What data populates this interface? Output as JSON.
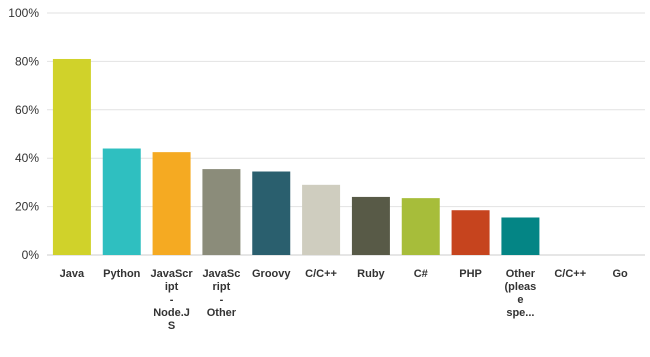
{
  "chart_data": {
    "type": "bar",
    "categories": [
      "Java",
      "Python",
      "JavaScript - Node.JS",
      "JavaScript - Other",
      "Groovy",
      "C/C++",
      "Ruby",
      "C#",
      "PHP",
      "Other (please spe...",
      "C/C++",
      "Go"
    ],
    "category_labels": [
      "Java",
      "Python",
      "JavaScr\nipt\n-\nNode.J\nS",
      "JavaSc\nript\n-\nOther",
      "Groovy",
      "C/C++",
      "Ruby",
      "C#",
      "PHP",
      "Other\n(pleas\ne\nspe...",
      "C/C++",
      "Go"
    ],
    "values": [
      81,
      44,
      42.5,
      35.5,
      34.5,
      29,
      24,
      23.5,
      18.5,
      15.5,
      0,
      0
    ],
    "colors": [
      "#d0d22a",
      "#2fbfc0",
      "#f5aa22",
      "#8b8c7a",
      "#2a5f6e",
      "#cfcdbf",
      "#585a47",
      "#a7bd3a",
      "#c6441e",
      "#048585",
      "#cccccc",
      "#cccccc"
    ],
    "yticks": [
      "0%",
      "20%",
      "40%",
      "60%",
      "80%",
      "100%"
    ],
    "ylim": [
      0,
      100
    ],
    "grid": true,
    "title": "",
    "xlabel": "",
    "ylabel": ""
  }
}
